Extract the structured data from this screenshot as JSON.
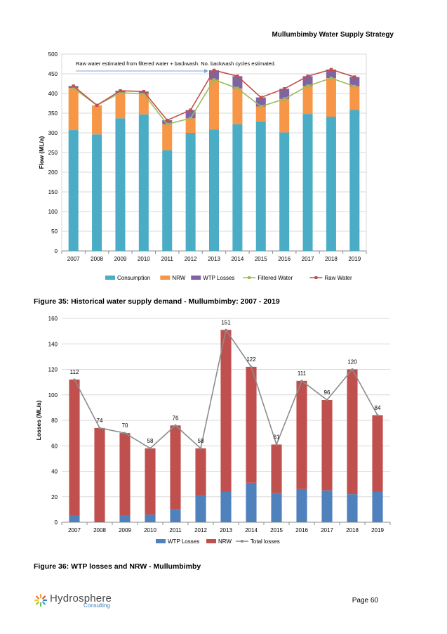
{
  "header": {
    "title": "Mullumbimby Water Supply Strategy"
  },
  "figure35": {
    "caption": "Figure 35: Historical water supply demand - Mullumbimby: 2007 - 2019"
  },
  "figure36": {
    "caption": "Figure 36: WTP losses and NRW - Mullumbimby"
  },
  "footer": {
    "logo_name": "Hydrosphere",
    "logo_sub": "Consulting",
    "page_label": "Page 60"
  },
  "colors": {
    "consumption": "#4BACC6",
    "nrw": "#F79646",
    "wtp_losses": "#8064A2",
    "filtered_water": "#9BBB59",
    "raw_water": "#C0504D",
    "wtp_losses_2": "#4F81BD",
    "nrw_2": "#C0504D",
    "total_losses": "#8C8C8C",
    "grid": "#D9D9D9"
  },
  "chart_data": [
    {
      "type": "bar",
      "stacked": true,
      "title": "",
      "xlabel": "",
      "ylabel": "Flow (ML/a)",
      "ylim": [
        0,
        500
      ],
      "yticks": [
        0,
        50,
        100,
        150,
        200,
        250,
        300,
        350,
        400,
        450,
        500
      ],
      "categories": [
        "2007",
        "2008",
        "2009",
        "2010",
        "2011",
        "2012",
        "2013",
        "2014",
        "2015",
        "2016",
        "2017",
        "2018",
        "2019"
      ],
      "series": [
        {
          "name": "Consumption",
          "kind": "bar",
          "values": [
            307,
            296,
            337,
            347,
            256,
            300,
            308,
            322,
            329,
            301,
            348,
            341,
            358
          ]
        },
        {
          "name": "NRW",
          "kind": "bar",
          "values": [
            107,
            74,
            65,
            52,
            66,
            37,
            127,
            91,
            38,
            85,
            71,
            98,
            60
          ]
        },
        {
          "name": "WTP Losses",
          "kind": "bar",
          "values": [
            5,
            0,
            5,
            6,
            10,
            21,
            24,
            31,
            23,
            26,
            25,
            22,
            24
          ]
        },
        {
          "name": "Filtered Water",
          "kind": "line",
          "values": [
            414,
            370,
            402,
            399,
            322,
            337,
            435,
            413,
            367,
            386,
            419,
            439,
            418
          ]
        },
        {
          "name": "Raw Water",
          "kind": "line",
          "values": [
            419,
            370,
            407,
            405,
            332,
            358,
            459,
            444,
            390,
            412,
            444,
            461,
            442
          ]
        }
      ],
      "annotation": "Raw water estimated from filtered water + backwash. No. backwash cycles estimated.",
      "grid": true,
      "legend": "bottom"
    },
    {
      "type": "bar",
      "stacked": true,
      "title": "",
      "xlabel": "",
      "ylabel": "Losses (ML/a)",
      "ylim": [
        0,
        160
      ],
      "yticks": [
        0,
        20,
        40,
        60,
        80,
        100,
        120,
        140,
        160
      ],
      "categories": [
        "2007",
        "2008",
        "2009",
        "2010",
        "2011",
        "2012",
        "2013",
        "2014",
        "2015",
        "2016",
        "2017",
        "2018",
        "2019"
      ],
      "series": [
        {
          "name": "WTP Losses",
          "kind": "bar",
          "values": [
            5,
            0,
            5,
            6,
            10,
            21,
            24,
            31,
            23,
            26,
            25,
            22,
            24
          ]
        },
        {
          "name": "NRW",
          "kind": "bar",
          "values": [
            107,
            74,
            65,
            52,
            66,
            37,
            127,
            91,
            38,
            85,
            71,
            98,
            60
          ]
        },
        {
          "name": "Total losses",
          "kind": "line",
          "values": [
            112,
            74,
            70,
            58,
            76,
            58,
            151,
            122,
            61,
            111,
            96,
            120,
            84
          ]
        }
      ],
      "data_labels": [
        "112",
        "74",
        "70",
        "58",
        "76",
        "58",
        "151",
        "122",
        "61",
        "111",
        "96",
        "120",
        "84"
      ],
      "grid": true,
      "legend": "bottom"
    }
  ]
}
